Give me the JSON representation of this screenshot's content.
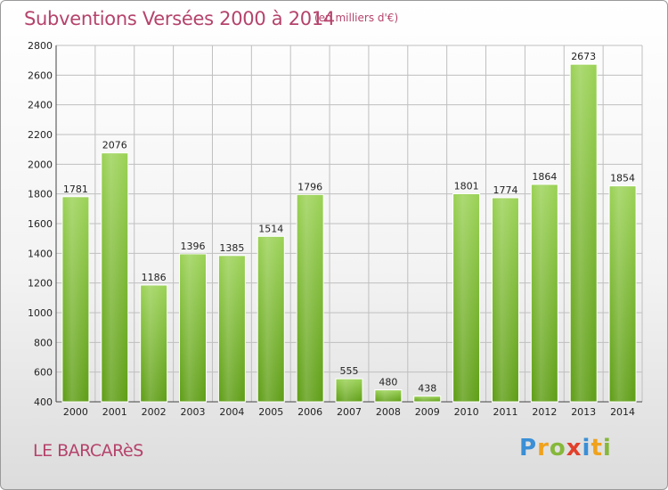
{
  "header": {
    "title": "Subventions Versées 2000 à 2014",
    "subtitle": "(en milliers d'€)"
  },
  "footer": {
    "city": "LE BARCARèS",
    "logo_letters": [
      {
        "char": "P",
        "color": "#3a8fd6"
      },
      {
        "char": "r",
        "color": "#f0a21c"
      },
      {
        "char": "o",
        "color": "#86b83a"
      },
      {
        "char": "x",
        "color": "#e2402b"
      },
      {
        "char": "i",
        "color": "#3a8fd6"
      },
      {
        "char": "t",
        "color": "#f0a21c"
      },
      {
        "char": "i",
        "color": "#86b83a"
      }
    ]
  },
  "chart_data": {
    "type": "bar",
    "categories": [
      "2000",
      "2001",
      "2002",
      "2003",
      "2004",
      "2005",
      "2006",
      "2007",
      "2008",
      "2009",
      "2010",
      "2011",
      "2012",
      "2013",
      "2014"
    ],
    "values": [
      1781,
      2076,
      1186,
      1396,
      1385,
      1514,
      1796,
      555,
      480,
      438,
      1801,
      1774,
      1864,
      2673,
      1854
    ],
    "title": "Subventions Versées 2000 à 2014",
    "xlabel": "",
    "ylabel": "",
    "ylim": [
      400,
      2800
    ],
    "yticks": [
      400,
      600,
      800,
      1000,
      1200,
      1400,
      1600,
      1800,
      2000,
      2200,
      2400,
      2600,
      2800
    ],
    "grid": true,
    "bar_color": "#7cbb2a",
    "grid_color": "#bfbfbf"
  }
}
